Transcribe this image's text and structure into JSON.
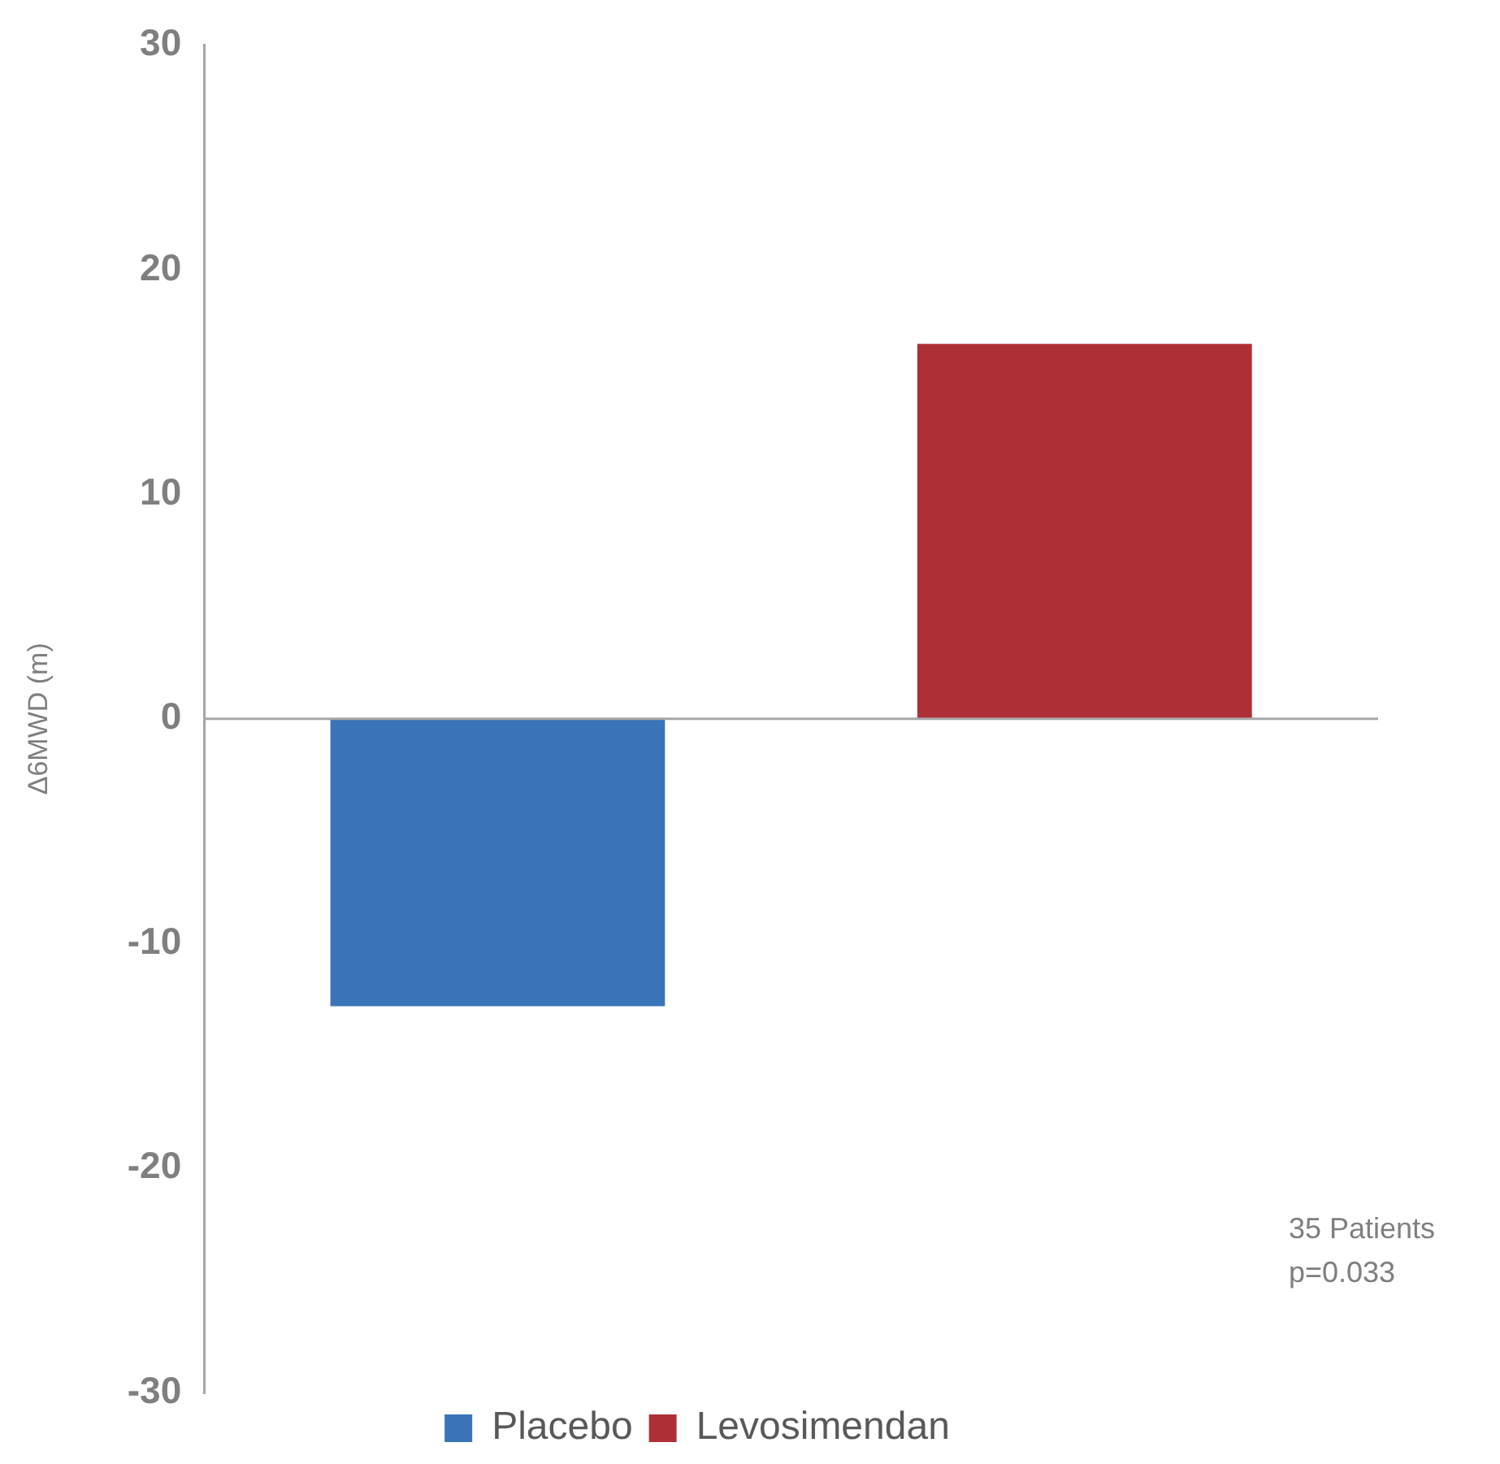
{
  "chart_data": {
    "type": "bar",
    "ylabel": "Δ6MWD (m)",
    "categories": [
      null,
      null
    ],
    "series": [
      {
        "name": "Placebo",
        "color": "#3a74b8",
        "values": [
          -12.8,
          null
        ]
      },
      {
        "name": "Levosimendan",
        "color": "#ae3036",
        "values": [
          null,
          16.7
        ]
      }
    ],
    "ylim": [
      -30,
      30
    ],
    "yticks": [
      -30,
      -20,
      -10,
      0,
      10,
      20,
      30
    ],
    "grid": false,
    "legend": "bottom",
    "tick_labels": "y",
    "ref_lines": [
      {
        "axis": "y",
        "value": 0,
        "color": "#a6a6a6"
      }
    ],
    "annotations": [
      "35 Patients",
      "p=0.033"
    ]
  }
}
